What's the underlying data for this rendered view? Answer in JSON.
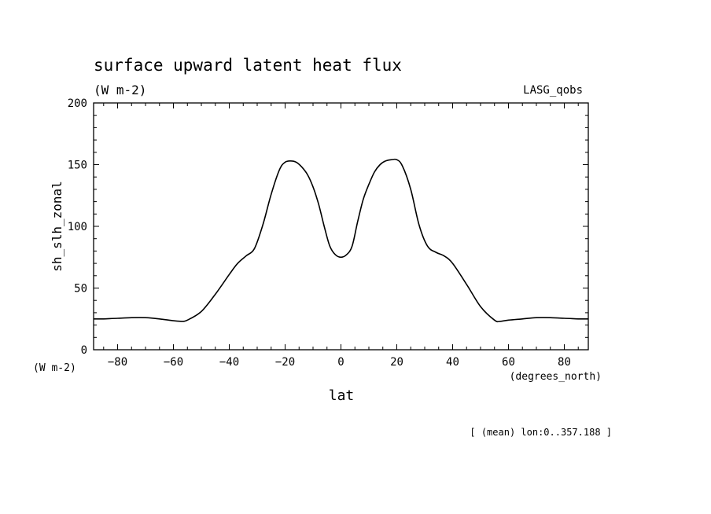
{
  "chart_data": {
    "type": "line",
    "title": "surface upward latent heat flux",
    "units": "(W m-2)",
    "dataset": "LASG_qobs",
    "xlabel": "lat",
    "ylabel": "sh_slh_zonal",
    "y_units_label": "(W m-2)",
    "x_units_label": "(degrees_north)",
    "footnote": "[ (mean) lon:0..357.188 ]",
    "xlim": [
      -88.6,
      88.6
    ],
    "ylim": [
      0,
      200
    ],
    "x_ticks": [
      -80,
      -60,
      -40,
      -20,
      0,
      20,
      40,
      60,
      80
    ],
    "x_tick_labels": [
      "−80",
      "−60",
      "−40",
      "−20",
      "0",
      "20",
      "40",
      "60",
      "80"
    ],
    "y_ticks": [
      0,
      50,
      100,
      150,
      200
    ],
    "y_tick_labels": [
      "0",
      "50",
      "100",
      "150",
      "200"
    ],
    "grid": false,
    "series": [
      {
        "x": [
          -88.6,
          -85,
          -80,
          -75,
          -70,
          -65,
          -60,
          -57,
          -55,
          -50,
          -45,
          -40,
          -37,
          -34,
          -31,
          -28,
          -25,
          -22,
          -20,
          -18,
          -16,
          -14,
          -12,
          -10,
          -8,
          -6,
          -4,
          -2,
          0,
          2,
          4,
          6,
          8,
          10,
          12,
          14,
          16,
          18,
          20,
          22,
          25,
          28,
          31,
          34,
          37,
          40,
          45,
          50,
          55,
          57,
          60,
          65,
          70,
          75,
          80,
          85,
          88.6
        ],
        "y": [
          25,
          25,
          25.5,
          26,
          26,
          25,
          23.5,
          23,
          24,
          31,
          45,
          61,
          70,
          76,
          82,
          101,
          126,
          146,
          152,
          153,
          152,
          148,
          142,
          132,
          118,
          100,
          84,
          77,
          75,
          77,
          84,
          104,
          122,
          134,
          144,
          150,
          153,
          154,
          154,
          149,
          130,
          101,
          84,
          79,
          76,
          70,
          53,
          35,
          24,
          23,
          24,
          25,
          26,
          26,
          25.5,
          25,
          25
        ]
      }
    ]
  }
}
